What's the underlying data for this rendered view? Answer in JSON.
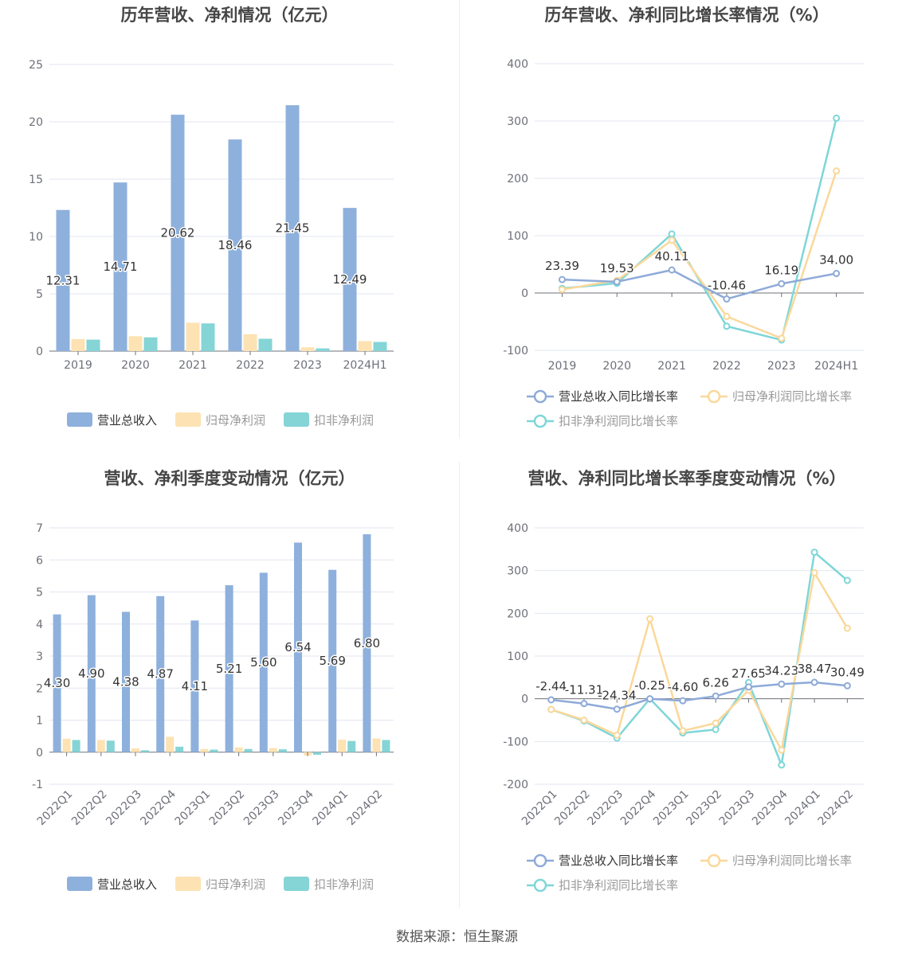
{
  "source_label": "数据来源：恒生聚源",
  "chart_data": [
    {
      "type": "bar",
      "title": "历年营收、净利情况（亿元）",
      "categories": [
        "2019",
        "2020",
        "2021",
        "2022",
        "2023",
        "2024H1"
      ],
      "ylim": [
        0,
        25
      ],
      "yticks": [
        0,
        5,
        10,
        15,
        20,
        25
      ],
      "grid": true,
      "legend_position": "bottom",
      "labeled_series": 0,
      "series": [
        {
          "name": "营业总收入",
          "color": "#8eb0dc",
          "values": [
            12.31,
            14.71,
            20.62,
            18.46,
            21.45,
            12.49
          ],
          "labels": [
            "12.31",
            "14.71",
            "20.62",
            "18.46",
            "21.45",
            "12.49"
          ]
        },
        {
          "name": "归母净利润",
          "color": "#fde2b3",
          "values": [
            1.05,
            1.3,
            2.48,
            1.48,
            0.33,
            0.88
          ]
        },
        {
          "name": "扣非净利润",
          "color": "#85d4d6",
          "values": [
            1.0,
            1.2,
            2.42,
            1.08,
            0.24,
            0.8
          ]
        }
      ]
    },
    {
      "type": "line",
      "title": "历年营收、净利同比增长率情况（%）",
      "categories": [
        "2019",
        "2020",
        "2021",
        "2022",
        "2023",
        "2024H1"
      ],
      "ylim": [
        -100,
        400
      ],
      "yticks": [
        -100,
        0,
        100,
        200,
        300,
        400
      ],
      "grid": true,
      "legend_position": "bottom",
      "labeled_series": 0,
      "series": [
        {
          "name": "营业总收入同比增长率",
          "color": "#8eaad8",
          "values": [
            23.39,
            19.53,
            40.11,
            -10.46,
            16.19,
            34.0
          ],
          "labels": [
            "23.39",
            "19.53",
            "40.11",
            "-10.46",
            "16.19",
            "34.00"
          ]
        },
        {
          "name": "归母净利润同比增长率",
          "color": "#fad89a",
          "values": [
            6,
            22,
            92,
            -41,
            -79,
            213
          ]
        },
        {
          "name": "扣非净利润同比增长率",
          "color": "#7fd6d8",
          "values": [
            8,
            17,
            103,
            -58,
            -82,
            305
          ]
        }
      ]
    },
    {
      "type": "bar",
      "title": "营收、净利季度变动情况（亿元）",
      "categories": [
        "2022Q1",
        "2022Q2",
        "2022Q3",
        "2022Q4",
        "2023Q1",
        "2023Q2",
        "2023Q3",
        "2023Q4",
        "2024Q1",
        "2024Q2"
      ],
      "ylim": [
        -1,
        7
      ],
      "yticks": [
        -1,
        0,
        1,
        2,
        3,
        4,
        5,
        6,
        7
      ],
      "grid": true,
      "legend_position": "bottom",
      "labeled_series": 0,
      "series": [
        {
          "name": "营业总收入",
          "color": "#8eb0dc",
          "values": [
            4.3,
            4.9,
            4.38,
            4.87,
            4.11,
            5.21,
            5.6,
            6.54,
            5.69,
            6.8
          ],
          "labels": [
            "4.30",
            "4.90",
            "4.38",
            "4.87",
            "4.11",
            "5.21",
            "5.60",
            "6.54",
            "5.69",
            "6.80"
          ]
        },
        {
          "name": "归母净利润",
          "color": "#fde2b3",
          "values": [
            0.42,
            0.38,
            0.12,
            0.48,
            0.1,
            0.15,
            0.13,
            -0.1,
            0.39,
            0.43
          ]
        },
        {
          "name": "扣非净利润",
          "color": "#85d4d6",
          "values": [
            0.38,
            0.36,
            0.06,
            0.17,
            0.08,
            0.1,
            0.09,
            -0.08,
            0.35,
            0.38
          ]
        }
      ]
    },
    {
      "type": "line",
      "title": "营收、净利同比增长率季度变动情况（%）",
      "categories": [
        "2022Q1",
        "2022Q2",
        "2022Q3",
        "2022Q4",
        "2023Q1",
        "2023Q2",
        "2023Q3",
        "2023Q4",
        "2024Q1",
        "2024Q2"
      ],
      "ylim": [
        -200,
        400
      ],
      "yticks": [
        -200,
        -100,
        0,
        100,
        200,
        300,
        400
      ],
      "grid": true,
      "legend_position": "bottom",
      "labeled_series": 0,
      "series": [
        {
          "name": "营业总收入同比增长率",
          "color": "#8eaad8",
          "values": [
            -2.44,
            -11.31,
            -24.34,
            -0.25,
            -4.6,
            6.26,
            27.65,
            34.23,
            38.47,
            30.49
          ],
          "labels": [
            "-2.44",
            "-11.31",
            "-24.34",
            "-0.25",
            "-4.60",
            "6.26",
            "27.65",
            "34.23",
            "38.47",
            "30.49"
          ]
        },
        {
          "name": "归母净利润同比增长率",
          "color": "#fad89a",
          "values": [
            -25,
            -50,
            -85,
            187,
            -75,
            -57,
            20,
            -120,
            295,
            165
          ]
        },
        {
          "name": "扣非净利润同比增长率",
          "color": "#7fd6d8",
          "values": [
            -25,
            -52,
            -92,
            0,
            -80,
            -72,
            38,
            -155,
            343,
            277
          ]
        }
      ]
    }
  ]
}
